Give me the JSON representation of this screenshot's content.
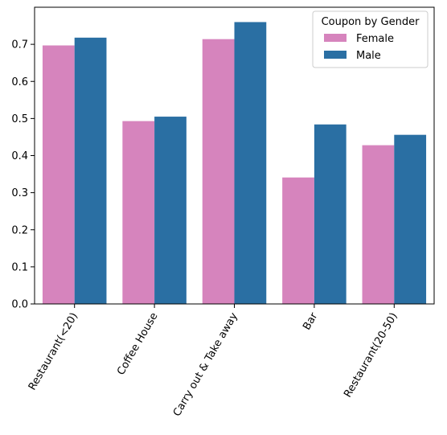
{
  "chart_data": {
    "type": "bar",
    "categories": [
      "Restaurant(<20)",
      "Coffee House",
      "Carry out & Take away",
      "Bar",
      "Restaurant(20-50)"
    ],
    "series": [
      {
        "name": "Female",
        "color": "#d684bd",
        "values": [
          0.697,
          0.493,
          0.714,
          0.341,
          0.428
        ]
      },
      {
        "name": "Male",
        "color": "#2a6fa3",
        "values": [
          0.718,
          0.505,
          0.76,
          0.484,
          0.456
        ]
      }
    ],
    "legend": {
      "title": "Coupon by Gender",
      "position": "top-right"
    },
    "ylim": [
      0.0,
      0.8
    ],
    "yticks": [
      "0.0",
      "0.1",
      "0.2",
      "0.3",
      "0.4",
      "0.5",
      "0.6",
      "0.7"
    ],
    "xlabel": "",
    "ylabel": "",
    "grid": false,
    "x_tick_rotation": "60 degrees"
  }
}
